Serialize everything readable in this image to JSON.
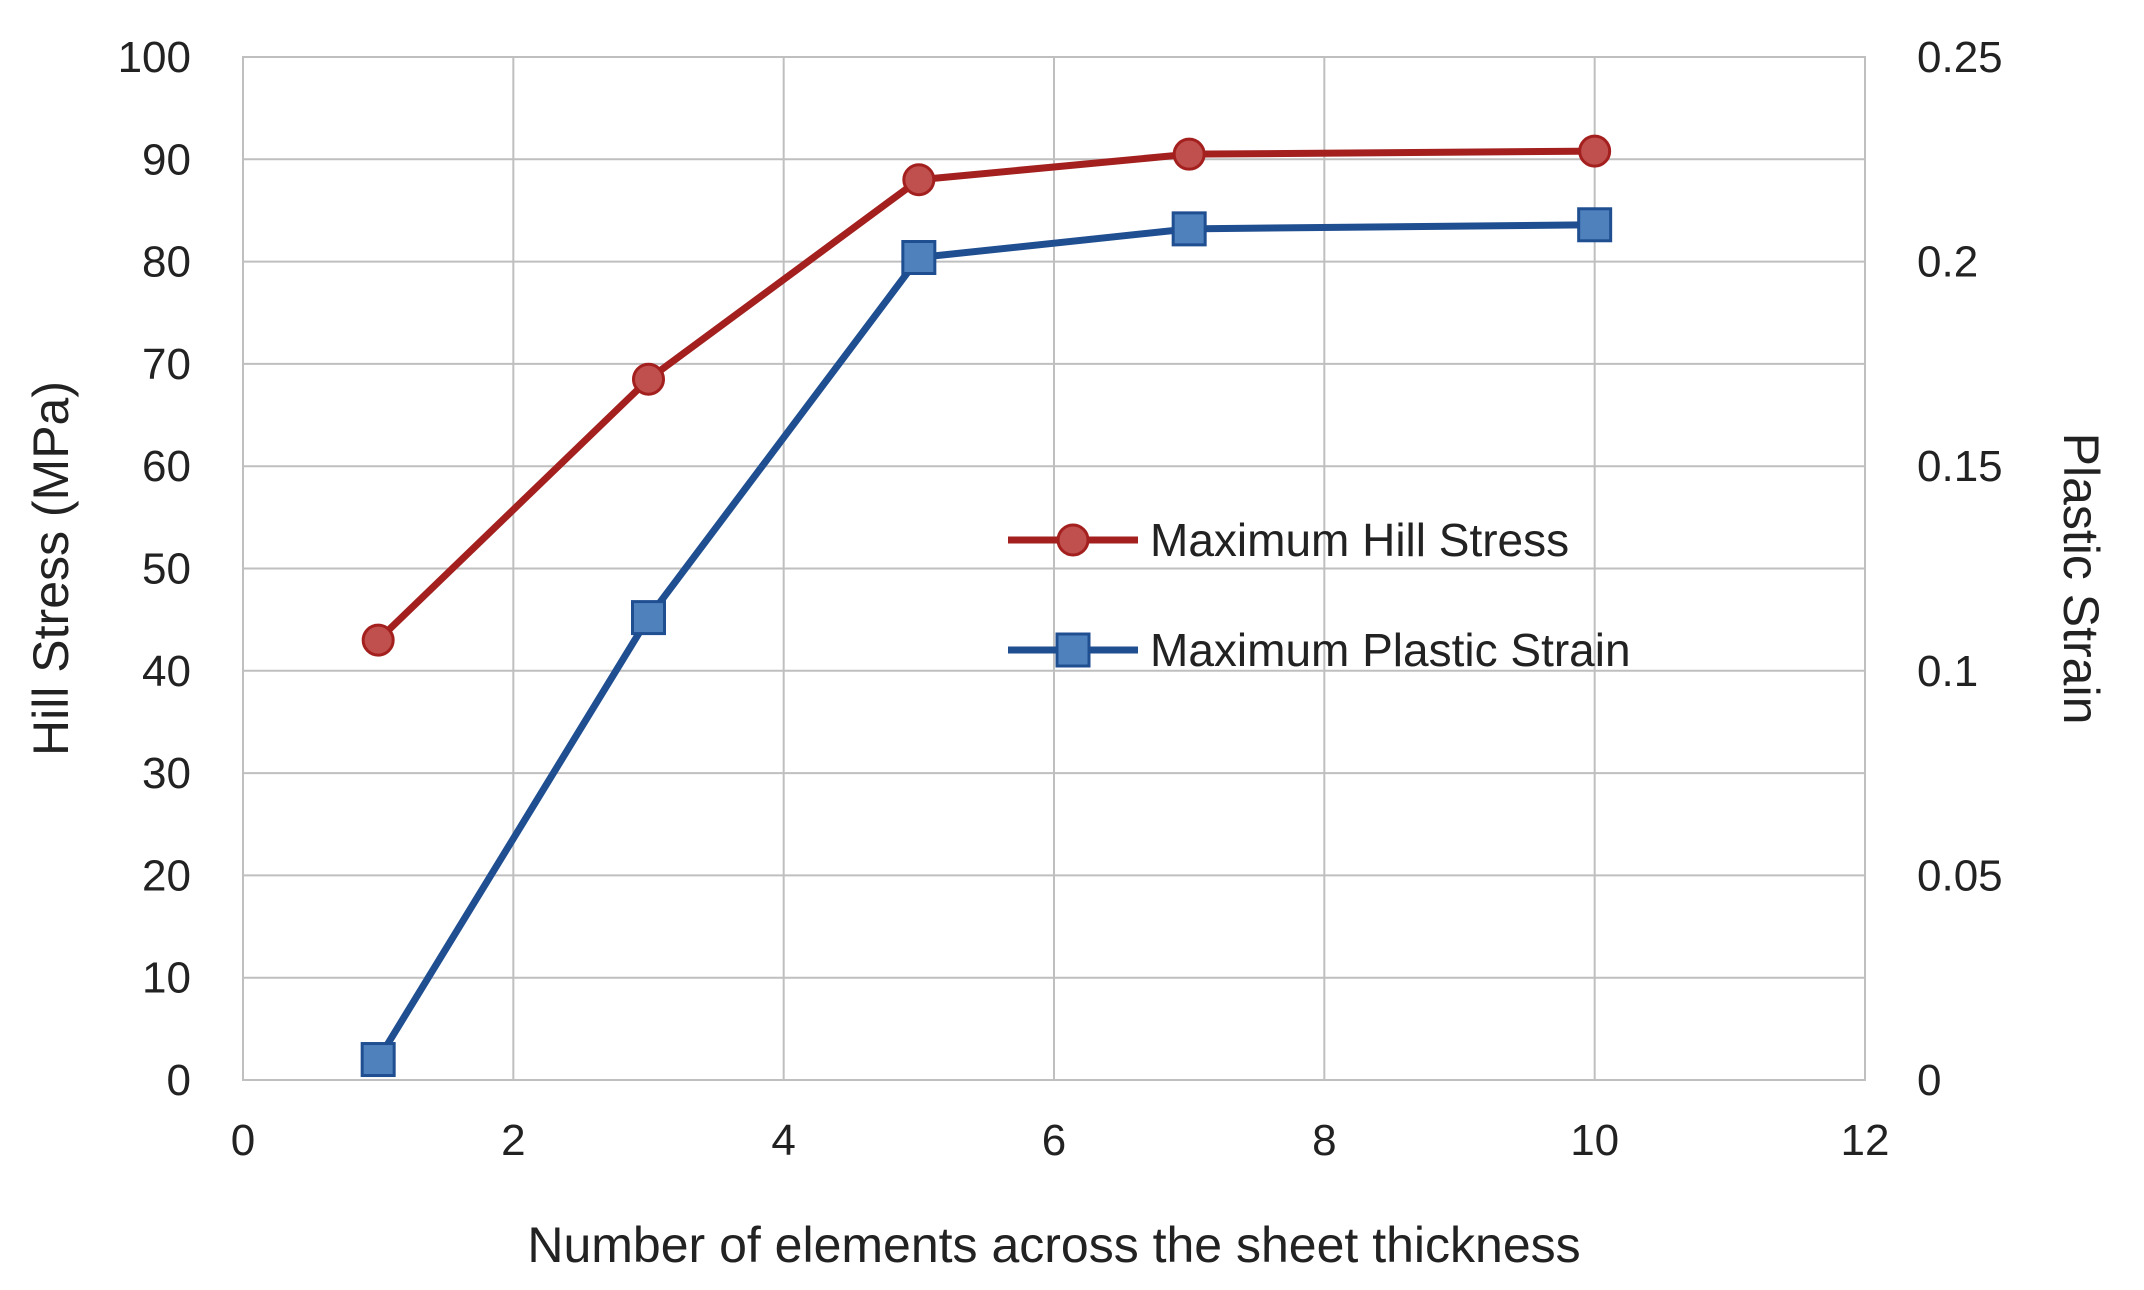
{
  "chart_data": {
    "type": "line",
    "xlabel": "Number of elements across the sheet thickness",
    "ylabel": "Hill Stress (MPa)",
    "y2label": "Plastic Strain",
    "xlim": [
      0,
      12
    ],
    "ylim": [
      0,
      100
    ],
    "y2lim": [
      0,
      0.25
    ],
    "x_ticks": [
      "0",
      "2",
      "4",
      "6",
      "8",
      "10",
      "12"
    ],
    "y_ticks": [
      "0",
      "10",
      "20",
      "30",
      "40",
      "50",
      "60",
      "70",
      "80",
      "90",
      "100"
    ],
    "y2_ticks": [
      "0",
      "0.05",
      "0.1",
      "0.15",
      "0.2",
      "0.25"
    ],
    "grid": true,
    "legend_position": "center-right",
    "series": [
      {
        "name": "Maximum Hill Stress",
        "axis": "left",
        "marker": "circle",
        "color": "#a3201f",
        "x": [
          1,
          3,
          5,
          7,
          10
        ],
        "y": [
          43,
          68.5,
          88,
          90.5,
          90.8
        ]
      },
      {
        "name": "Maximum Plastic Strain",
        "axis": "right",
        "marker": "square",
        "color": "#1f4e91",
        "x": [
          1,
          3,
          5,
          7,
          10
        ],
        "y": [
          0.005,
          0.113,
          0.201,
          0.208,
          0.209
        ]
      }
    ]
  }
}
